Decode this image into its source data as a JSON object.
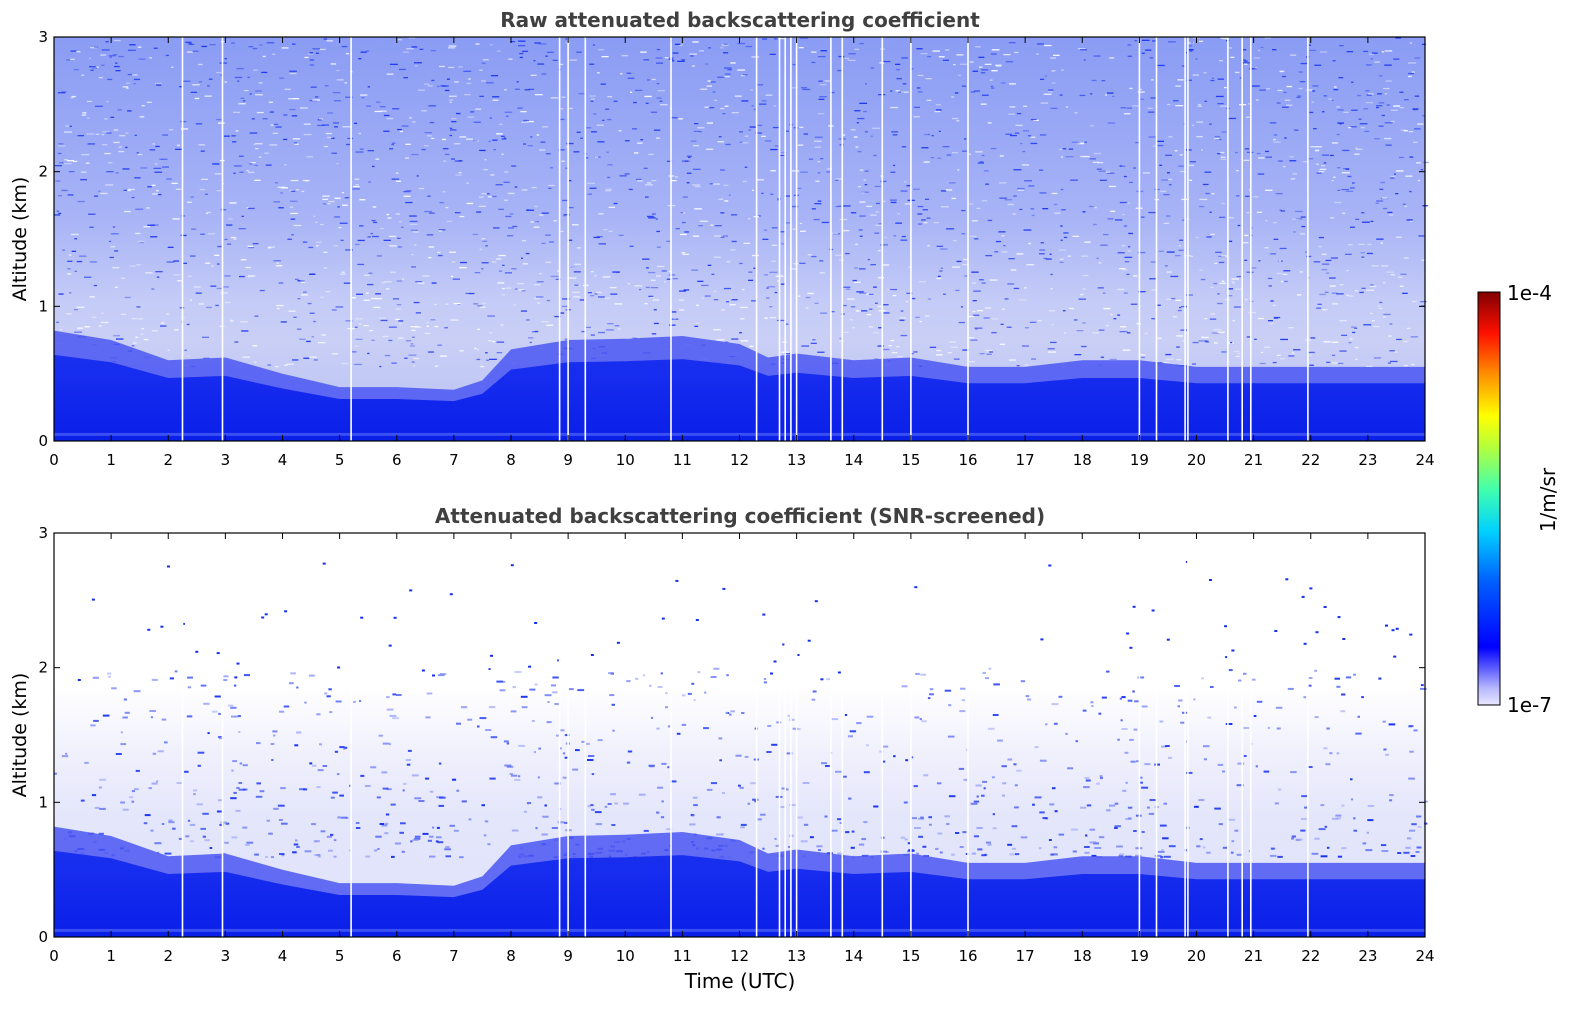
{
  "chart_data": [
    {
      "type": "heatmap",
      "title": "Raw attenuated backscattering coefficient",
      "xlabel": "",
      "ylabel": "Altitude (km)",
      "xlim": [
        0,
        24
      ],
      "ylim": [
        0,
        3
      ],
      "x_ticks": [
        "0",
        "1",
        "2",
        "3",
        "4",
        "5",
        "6",
        "7",
        "8",
        "9",
        "10",
        "11",
        "12",
        "13",
        "14",
        "15",
        "16",
        "17",
        "18",
        "19",
        "20",
        "21",
        "22",
        "23",
        "24"
      ],
      "y_ticks": [
        "0",
        "1",
        "2",
        "3"
      ],
      "boundary_layer_top_km": {
        "x": [
          0,
          1,
          2,
          3,
          4,
          5,
          6,
          7,
          7.5,
          8,
          9,
          10,
          11,
          12,
          12.5,
          13,
          14,
          15,
          16,
          17,
          18,
          19,
          20,
          21,
          22,
          23,
          24
        ],
        "y": [
          0.82,
          0.75,
          0.6,
          0.62,
          0.5,
          0.4,
          0.4,
          0.38,
          0.45,
          0.68,
          0.75,
          0.76,
          0.78,
          0.72,
          0.62,
          0.65,
          0.6,
          0.62,
          0.55,
          0.55,
          0.6,
          0.6,
          0.55,
          0.55,
          0.55,
          0.55,
          0.55
        ]
      },
      "data_gaps_utc": [
        2.25,
        2.95,
        5.2,
        8.85,
        9.0,
        9.3,
        10.8,
        12.3,
        12.7,
        12.8,
        12.9,
        13.0,
        13.6,
        13.8,
        14.5,
        15.0,
        16.0,
        19.0,
        19.3,
        19.8,
        19.85,
        20.55,
        20.8,
        20.95,
        21.95
      ]
    },
    {
      "type": "heatmap",
      "title": "Attenuated backscattering coefficient (SNR-screened)",
      "xlabel": "Time (UTC)",
      "ylabel": "Altitude (km)",
      "xlim": [
        0,
        24
      ],
      "ylim": [
        0,
        3
      ],
      "x_ticks": [
        "0",
        "1",
        "2",
        "3",
        "4",
        "5",
        "6",
        "7",
        "8",
        "9",
        "10",
        "11",
        "12",
        "13",
        "14",
        "15",
        "16",
        "17",
        "18",
        "19",
        "20",
        "21",
        "22",
        "23",
        "24"
      ],
      "y_ticks": [
        "0",
        "1",
        "2",
        "3"
      ],
      "boundary_layer_top_km": {
        "x": [
          0,
          1,
          2,
          3,
          4,
          5,
          6,
          7,
          7.5,
          8,
          9,
          10,
          11,
          12,
          12.5,
          13,
          14,
          15,
          16,
          17,
          18,
          19,
          20,
          21,
          22,
          23,
          24
        ],
        "y": [
          0.82,
          0.75,
          0.6,
          0.62,
          0.5,
          0.4,
          0.4,
          0.38,
          0.45,
          0.68,
          0.75,
          0.76,
          0.78,
          0.72,
          0.62,
          0.65,
          0.6,
          0.62,
          0.55,
          0.55,
          0.6,
          0.6,
          0.55,
          0.55,
          0.55,
          0.55,
          0.55
        ]
      },
      "data_gaps_utc": [
        2.25,
        2.95,
        5.2,
        8.85,
        9.0,
        9.3,
        10.8,
        12.3,
        12.7,
        12.8,
        12.9,
        13.0,
        13.6,
        13.8,
        14.5,
        15.0,
        16.0,
        19.0,
        19.3,
        19.8,
        19.85,
        20.55,
        20.8,
        20.95,
        21.95
      ]
    }
  ],
  "colorbar": {
    "label": "1/m/sr",
    "max_label": "1e-4",
    "min_label": "1e-7",
    "colormap": "jet",
    "scale": "log",
    "range": [
      1e-07,
      0.0001
    ]
  }
}
